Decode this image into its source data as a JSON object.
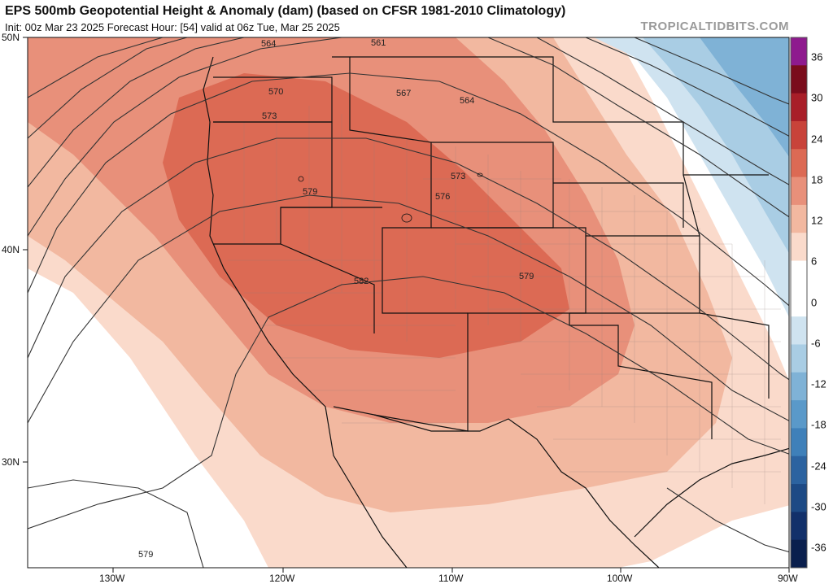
{
  "header": {
    "title": "EPS 500mb Geopotential Height & Anomaly (dam) (based on CFSR 1981-2010 Climatology)",
    "subtitle": "Init: 00z Mar 23 2025   Forecast Hour: [54]   valid at 06z Tue, Mar 25 2025",
    "brand": "TROPICALTIDBITS.COM"
  },
  "axes": {
    "latitude_labels": [
      "50N",
      "40N",
      "30N"
    ],
    "longitude_labels": [
      "130W",
      "120W",
      "110W",
      "100W",
      "90W"
    ]
  },
  "contour_labels": [
    "564",
    "561",
    "570",
    "567",
    "564",
    "573",
    "573",
    "579",
    "576",
    "579",
    "582",
    "579"
  ],
  "colorbar": {
    "labels": [
      "36",
      "30",
      "24",
      "18",
      "12",
      "6",
      "0",
      "-6",
      "-12",
      "-18",
      "-24",
      "-30",
      "-36"
    ],
    "colors": [
      "#8e1a8e",
      "#7a0c1c",
      "#a81e28",
      "#c8433a",
      "#dc6a54",
      "#e8907a",
      "#f2b8a0",
      "#fadacb",
      "#ffffff",
      "#ffffff",
      "#cfe3f0",
      "#a9cde4",
      "#7fb2d6",
      "#5a99c9",
      "#3f80b9",
      "#2c63a0",
      "#1d4a85",
      "#12306a",
      "#0a1f4d"
    ]
  },
  "map_colors": {
    "ocean": "#ffffff",
    "anom_6": "#fadacb",
    "anom_12": "#f2b8a0",
    "anom_18": "#e8907a",
    "anom_24": "#dc6a54",
    "anom_neg6": "#cfe3f0",
    "anom_neg12": "#a9cde4",
    "anom_neg18": "#7fb2d6",
    "contour": "#333333",
    "border": "#111111",
    "county": "#8f7f7a"
  }
}
